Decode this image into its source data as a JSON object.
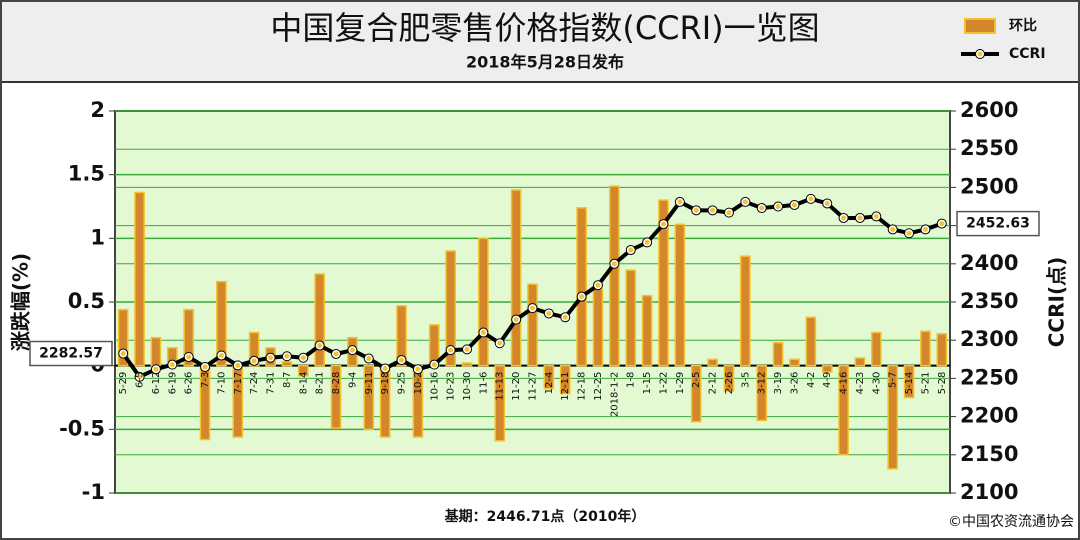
{
  "chart_data": {
    "type": "combo",
    "title": "中国复合肥零售价格指数(CCRI)一览图",
    "subtitle": "2018年5月28日发布",
    "ylabel": "涨跌幅(%)",
    "y2label": "CCRI(点)",
    "footnote": "基期：2446.71点（2010年）",
    "source": "©中国农资流通协会",
    "categories": [
      "5-29",
      "6-5",
      "6-12",
      "6-19",
      "6-26",
      "7-3",
      "7-10",
      "7-17",
      "7-24",
      "7-31",
      "8-7",
      "8-14",
      "8-21",
      "8-28",
      "9-4",
      "9-11",
      "9-18",
      "9-25",
      "10-2",
      "10-16",
      "10-23",
      "10-30",
      "11-6",
      "11-13",
      "11-20",
      "11-27",
      "12-4",
      "12-11",
      "12-18",
      "12-25",
      "2018-1-2",
      "1-8",
      "1-15",
      "1-22",
      "1-29",
      "2-5",
      "2-12",
      "2-26",
      "3-5",
      "3-12",
      "3-19",
      "3-26",
      "4-2",
      "4-9",
      "4-16",
      "4-23",
      "4-30",
      "5-7",
      "5-14",
      "5-21",
      "5-28"
    ],
    "series": [
      {
        "name": "环比",
        "type": "bar",
        "axis": "y",
        "color": "#d4862a",
        "values": [
          0.44,
          1.36,
          0.22,
          0.14,
          0.44,
          -0.58,
          0.66,
          -0.56,
          0.26,
          0.14,
          0.03,
          -0.08,
          0.72,
          -0.49,
          0.22,
          -0.5,
          -0.56,
          0.47,
          -0.56,
          0.32,
          0.9,
          0.02,
          1.0,
          -0.59,
          1.38,
          0.64,
          -0.18,
          -0.22,
          1.24,
          0.6,
          1.41,
          0.75,
          0.55,
          1.3,
          1.11,
          -0.44,
          0.05,
          -0.2,
          0.86,
          -0.43,
          0.18,
          0.05,
          0.38,
          -0.05,
          -0.7,
          0.06,
          0.26,
          -0.81,
          -0.25,
          0.27,
          0.25
        ]
      },
      {
        "name": "CCRI",
        "type": "line",
        "axis": "y2",
        "color": "#000000",
        "values": [
          2282.57,
          2252,
          2262,
          2268,
          2278,
          2265,
          2280,
          2267,
          2273,
          2277,
          2279,
          2277,
          2293,
          2282,
          2287,
          2276,
          2263,
          2274,
          2262,
          2268,
          2287,
          2288,
          2310,
          2296,
          2327,
          2342,
          2335,
          2330,
          2357,
          2372,
          2400,
          2418,
          2428,
          2452,
          2481,
          2470,
          2470,
          2467,
          2481,
          2473,
          2475,
          2477,
          2485,
          2479,
          2460,
          2460,
          2462,
          2445,
          2440,
          2445,
          2452.63
        ]
      }
    ],
    "ylim": [
      -1,
      2
    ],
    "yticks": [
      -1,
      -0.5,
      0,
      0.5,
      1,
      1.5,
      2
    ],
    "y2lim": [
      2100,
      2600
    ],
    "y2ticks": [
      2100,
      2150,
      2200,
      2250,
      2300,
      2350,
      2400,
      2450,
      2500,
      2550,
      2600
    ],
    "grid": true,
    "legend": "top-right"
  }
}
